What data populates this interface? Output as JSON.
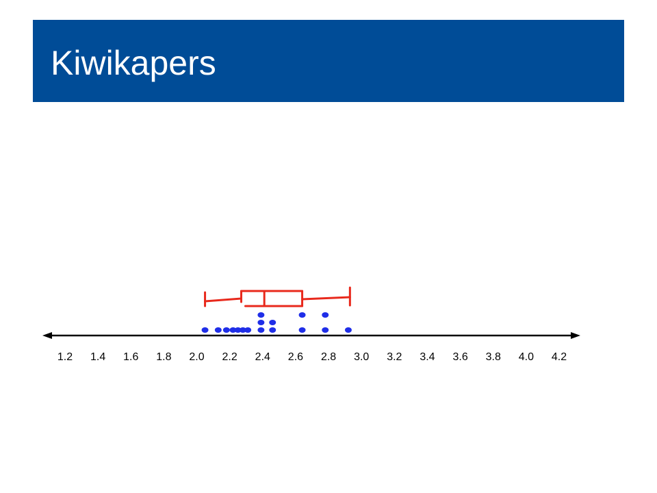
{
  "slide": {
    "title": "Kiwikapers"
  },
  "colors": {
    "header_bg": "#004c97",
    "header_text": "#ffffff",
    "axis": "#000000",
    "boxplot": "#e8291c",
    "dots": "#1f2ee8"
  },
  "chart_data": {
    "type": "dot plot with box plot",
    "x_ticks": [
      "1.2",
      "1.4",
      "1.6",
      "1.8",
      "2.0",
      "2.2",
      "2.4",
      "2.6",
      "2.8",
      "3.0",
      "3.2",
      "3.4",
      "3.6",
      "3.8",
      "4.0",
      "4.2"
    ],
    "xlim": [
      1.2,
      4.2
    ],
    "boxplot": {
      "min": 2.05,
      "q1": 2.27,
      "median": 2.41,
      "q3": 2.64,
      "max": 2.93
    },
    "points": [
      {
        "x": 2.05,
        "level": 0
      },
      {
        "x": 2.13,
        "level": 0
      },
      {
        "x": 2.18,
        "level": 0
      },
      {
        "x": 2.22,
        "level": 0
      },
      {
        "x": 2.25,
        "level": 0
      },
      {
        "x": 2.28,
        "level": 0
      },
      {
        "x": 2.31,
        "level": 0
      },
      {
        "x": 2.39,
        "level": 0
      },
      {
        "x": 2.39,
        "level": 1
      },
      {
        "x": 2.39,
        "level": 2
      },
      {
        "x": 2.46,
        "level": 0
      },
      {
        "x": 2.46,
        "level": 1
      },
      {
        "x": 2.64,
        "level": 0
      },
      {
        "x": 2.64,
        "level": 2
      },
      {
        "x": 2.78,
        "level": 0
      },
      {
        "x": 2.78,
        "level": 2
      },
      {
        "x": 2.92,
        "level": 0
      }
    ]
  }
}
